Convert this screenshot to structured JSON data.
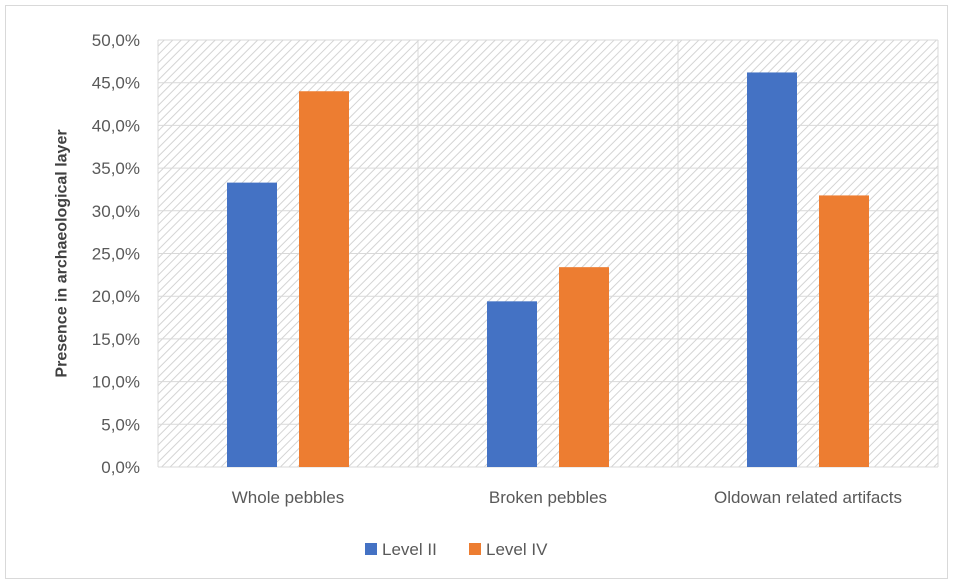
{
  "chart_data": {
    "type": "bar",
    "title": "",
    "xlabel": "",
    "ylabel": "Presence in archaeological layer",
    "categories": [
      "Whole pebbles",
      "Broken pebbles",
      "Oldowan related artifacts"
    ],
    "series": [
      {
        "name": "Level II",
        "values": [
          33.3,
          19.4,
          46.2
        ],
        "color": "#4472C4"
      },
      {
        "name": "Level IV",
        "values": [
          44.0,
          23.4,
          31.8
        ],
        "color": "#ED7D31"
      }
    ],
    "ylim": [
      0,
      50
    ],
    "ytick_step": 5,
    "ytick_format": "one-decimal-percent-comma",
    "grid": true,
    "plot_background": "hatched-light-gray",
    "legend_position": "bottom"
  }
}
